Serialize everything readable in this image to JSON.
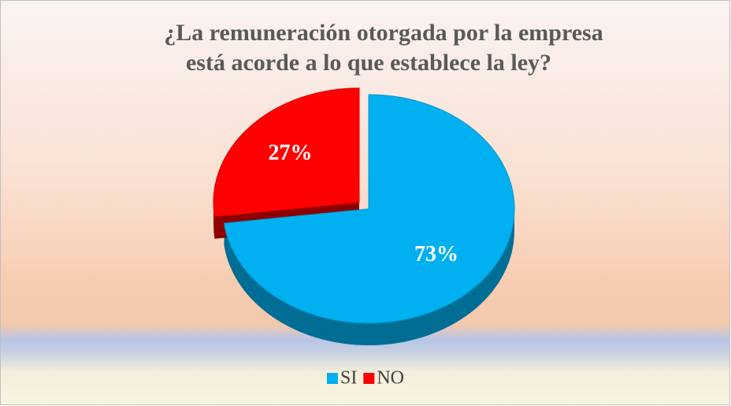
{
  "chart_data": {
    "type": "pie",
    "title": [
      "¿La remuneración otorgada por la empresa",
      "está acorde a lo que establece la ley?"
    ],
    "categories": [
      "SI",
      "NO"
    ],
    "values": [
      73,
      27
    ],
    "value_labels": [
      "73%",
      "27%"
    ],
    "colors": [
      "#00b0f0",
      "#ff0000"
    ],
    "legend": "bottom"
  }
}
